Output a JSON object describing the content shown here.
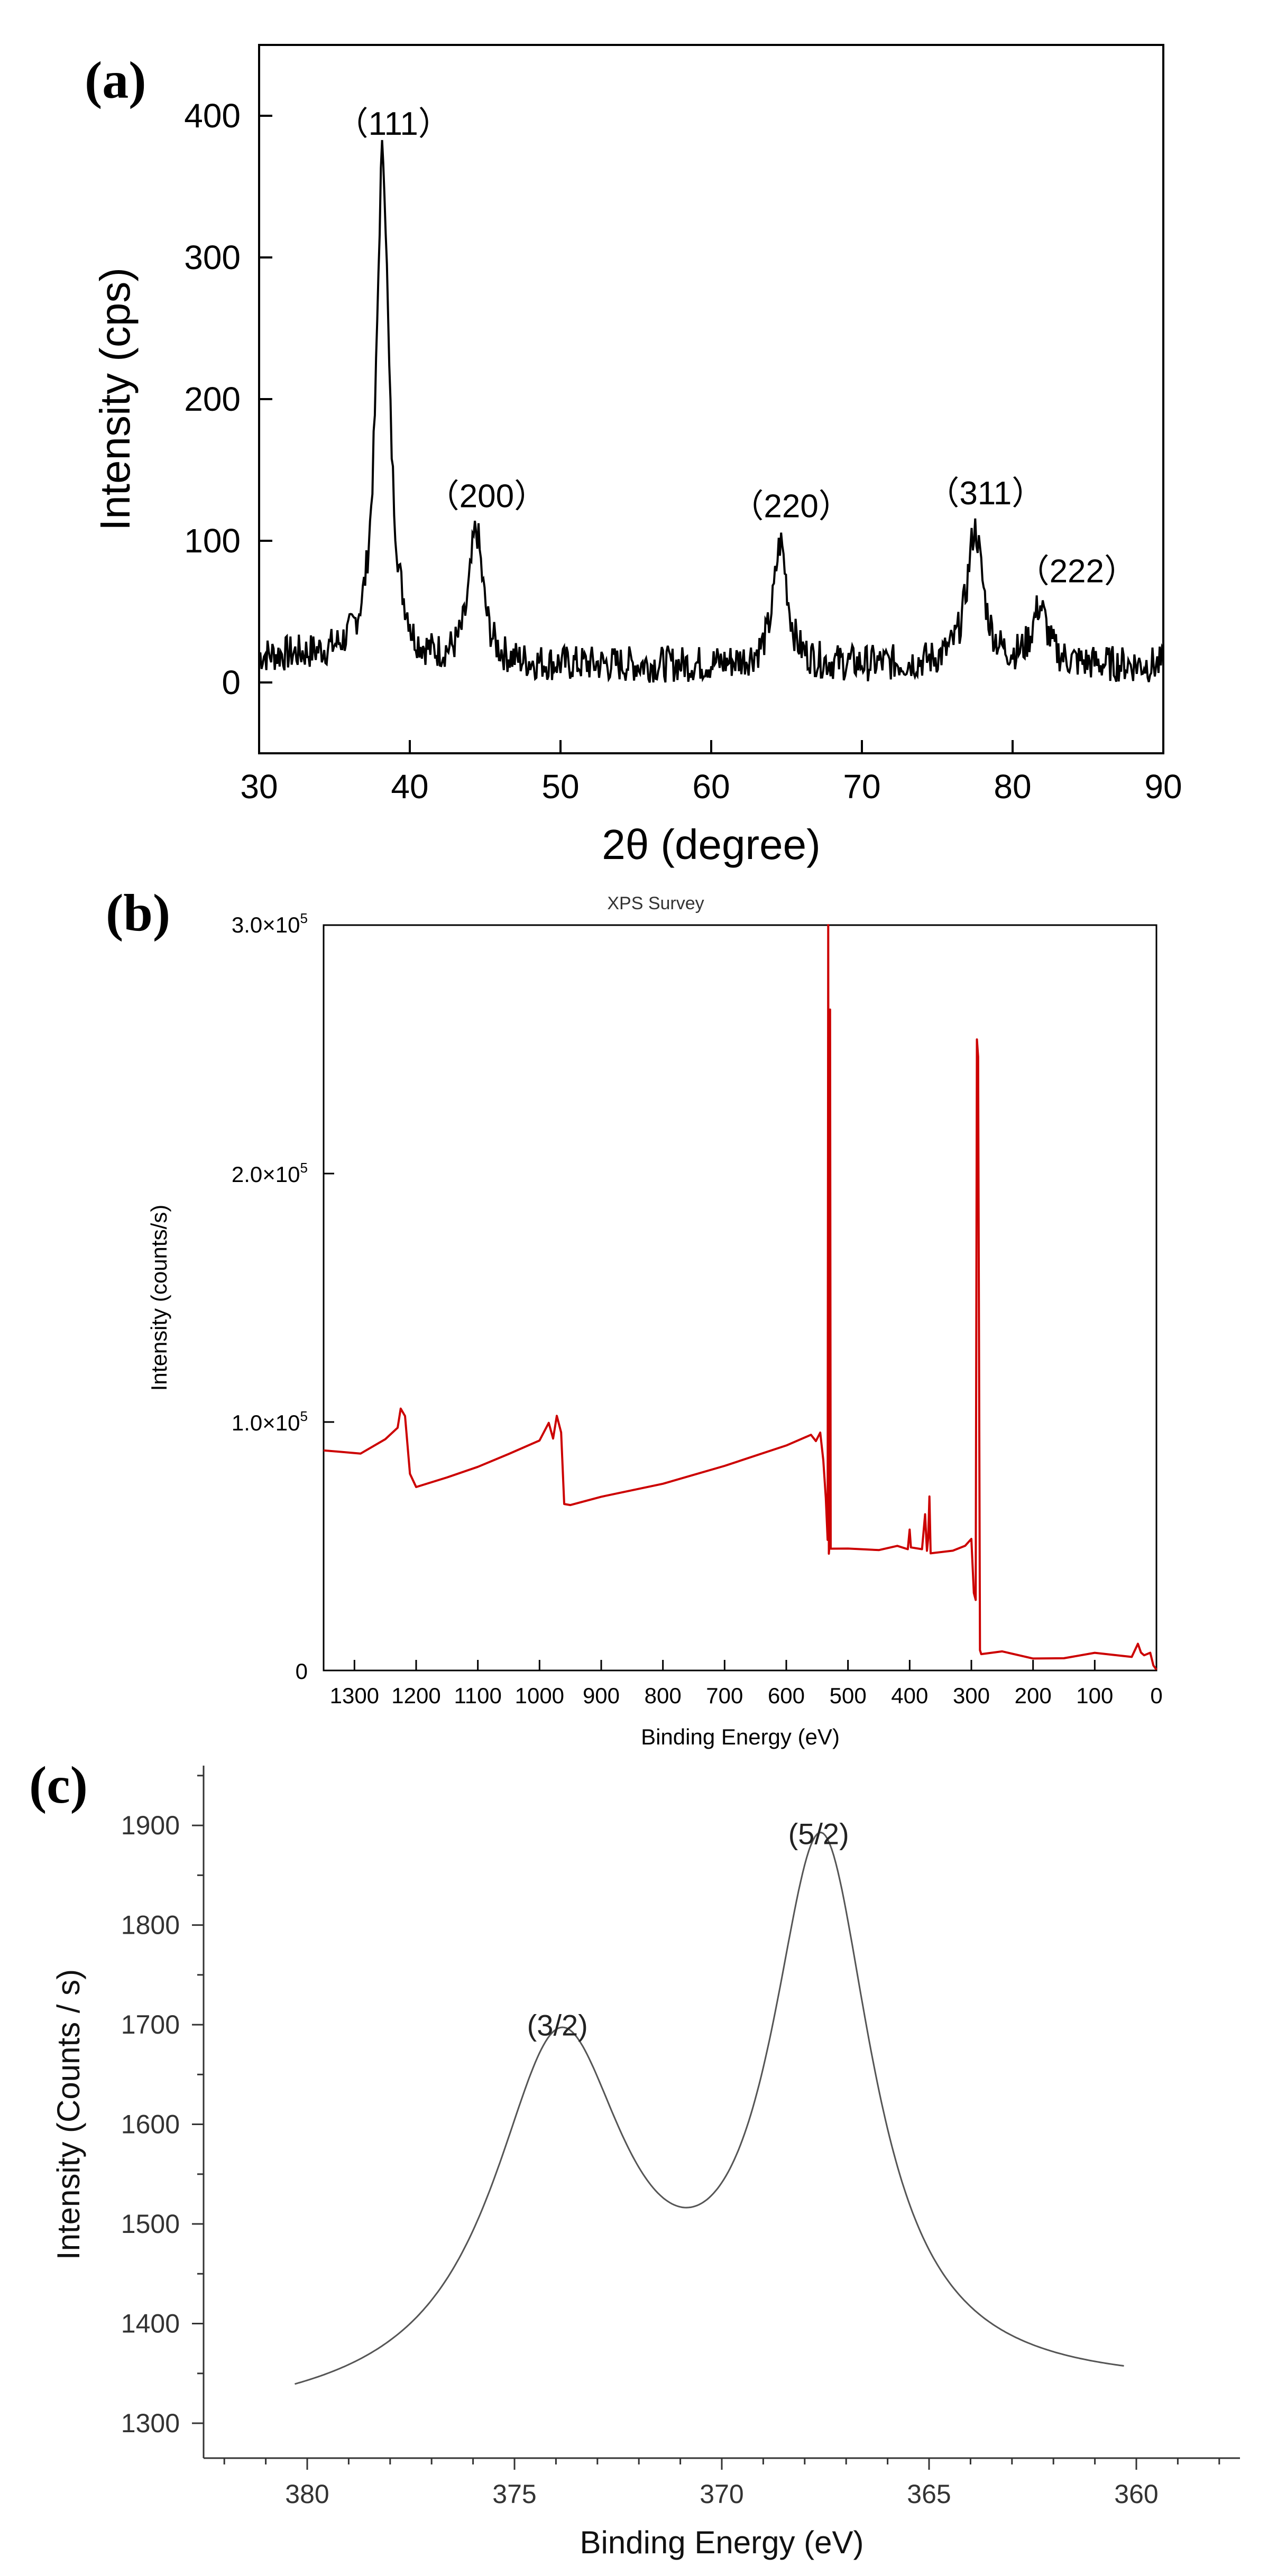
{
  "chart_data": [
    {
      "panel": "(a)",
      "type": "line",
      "xlabel": "2θ (degree)",
      "ylabel": "Intensity (cps)",
      "xlim": [
        30,
        90
      ],
      "ylim": [
        -50,
        450
      ],
      "xticks": [
        30,
        40,
        50,
        60,
        70,
        80,
        90
      ],
      "yticks": [
        0,
        100,
        200,
        300,
        400
      ],
      "color": "#000000",
      "baseline": 12,
      "peaks": [
        {
          "label": "（111）",
          "x": 38.2,
          "y": 368
        },
        {
          "label": "（200）",
          "x": 44.4,
          "y": 105
        },
        {
          "label": "（220）",
          "x": 64.6,
          "y": 98
        },
        {
          "label": "（311）",
          "x": 77.5,
          "y": 107
        },
        {
          "label": "（222）",
          "x": 81.8,
          "y": 52
        }
      ]
    },
    {
      "panel": "(b)",
      "type": "line",
      "title": "XPS Survey",
      "xlabel": "Binding Energy (eV)",
      "ylabel": "Intensity (counts/s)",
      "xlim": [
        1350,
        0
      ],
      "ylim": [
        0,
        300000
      ],
      "xticks": [
        1300,
        1200,
        1100,
        1000,
        900,
        800,
        700,
        600,
        500,
        400,
        300,
        200,
        100,
        0
      ],
      "yticks": [
        {
          "value": 0,
          "base": "0",
          "exp": ""
        },
        {
          "value": 100000,
          "base": "1.0×10",
          "exp": "5"
        },
        {
          "value": 200000,
          "base": "2.0×10",
          "exp": "5"
        },
        {
          "value": 300000,
          "base": "3.0×10",
          "exp": "5"
        }
      ],
      "color": "#cc0000",
      "points": [
        [
          1350,
          89000
        ],
        [
          1290,
          88000
        ],
        [
          1250,
          92000
        ],
        [
          1230,
          98000
        ],
        [
          1225,
          105000
        ],
        [
          1218,
          103000
        ],
        [
          1210,
          78000
        ],
        [
          1200,
          74000
        ],
        [
          1150,
          78000
        ],
        [
          1100,
          82000
        ],
        [
          1050,
          86000
        ],
        [
          1000,
          92000
        ],
        [
          985,
          100000
        ],
        [
          978,
          93000
        ],
        [
          972,
          102000
        ],
        [
          965,
          97000
        ],
        [
          960,
          66000
        ],
        [
          950,
          66000
        ],
        [
          900,
          69000
        ],
        [
          800,
          76000
        ],
        [
          700,
          83000
        ],
        [
          600,
          91000
        ],
        [
          560,
          94000
        ],
        [
          552,
          92000
        ],
        [
          545,
          95000
        ],
        [
          540,
          85000
        ],
        [
          536,
          70000
        ],
        [
          533,
          52000
        ],
        [
          532,
          300000
        ],
        [
          531,
          48000
        ],
        [
          530,
          50000
        ],
        [
          529,
          266000
        ],
        [
          528,
          49000
        ],
        [
          500,
          49000
        ],
        [
          450,
          49000
        ],
        [
          420,
          50000
        ],
        [
          403,
          50000
        ],
        [
          400,
          57000
        ],
        [
          398,
          50000
        ],
        [
          380,
          50000
        ],
        [
          375,
          63000
        ],
        [
          372,
          49000
        ],
        [
          370,
          52000
        ],
        [
          368,
          69000
        ],
        [
          366,
          47000
        ],
        [
          330,
          49000
        ],
        [
          310,
          51000
        ],
        [
          300,
          52000
        ],
        [
          296,
          32000
        ],
        [
          293,
          28000
        ],
        [
          291,
          254000
        ],
        [
          289,
          247000
        ],
        [
          286,
          8000
        ],
        [
          284,
          7000
        ],
        [
          250,
          7000
        ],
        [
          200,
          6000
        ],
        [
          150,
          6000
        ],
        [
          100,
          6000
        ],
        [
          40,
          5000
        ],
        [
          30,
          10000
        ],
        [
          25,
          7000
        ],
        [
          20,
          5000
        ],
        [
          10,
          6000
        ],
        [
          5,
          3000
        ],
        [
          0,
          1000
        ]
      ]
    },
    {
      "panel": "(c)",
      "type": "line",
      "xlabel": "Binding Energy (eV)",
      "ylabel": "Intensity (Counts / s)",
      "xlim": [
        382.5,
        357.5
      ],
      "ylim": [
        1265,
        1960
      ],
      "xticks": [
        380,
        375,
        370,
        365,
        360
      ],
      "yticks": [
        1300,
        1400,
        1500,
        1600,
        1700,
        1800,
        1900
      ],
      "color": "#555555",
      "xrange": [
        380.3,
        360.3
      ],
      "baseline": [
        1300,
        1328
      ],
      "peaks": [
        {
          "label": "(3/2)",
          "x": 373.9,
          "y": 1668,
          "width": 2.0
        },
        {
          "label": "(5/2)",
          "x": 367.6,
          "y": 1860,
          "width": 1.5
        }
      ]
    }
  ]
}
